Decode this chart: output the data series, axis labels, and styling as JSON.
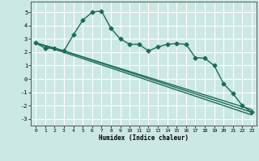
{
  "xlabel": "Humidex (Indice chaleur)",
  "background_color": "#cce8e4",
  "grid_color": "#ffffff",
  "line_color": "#1a6b5a",
  "xlim": [
    -0.5,
    23.5
  ],
  "ylim": [
    -3.5,
    5.8
  ],
  "yticks": [
    -3,
    -2,
    -1,
    0,
    1,
    2,
    3,
    4,
    5
  ],
  "xticks": [
    0,
    1,
    2,
    3,
    4,
    5,
    6,
    7,
    8,
    9,
    10,
    11,
    12,
    13,
    14,
    15,
    16,
    17,
    18,
    19,
    20,
    21,
    22,
    23
  ],
  "series1_x": [
    0,
    1,
    2,
    3,
    4,
    5,
    6,
    7,
    8,
    9,
    10,
    11,
    12,
    13,
    14,
    15,
    16,
    17,
    18,
    19,
    20,
    21,
    22,
    23
  ],
  "series1_y": [
    2.7,
    2.3,
    2.3,
    2.1,
    3.3,
    4.4,
    5.0,
    5.1,
    3.8,
    3.0,
    2.6,
    2.6,
    2.1,
    2.4,
    2.6,
    2.65,
    2.6,
    1.6,
    1.55,
    1.0,
    -0.35,
    -1.1,
    -2.0,
    -2.5
  ],
  "series2_x": [
    0,
    23
  ],
  "series2_y": [
    2.7,
    -2.7
  ],
  "series3_x": [
    0,
    3,
    23
  ],
  "series3_y": [
    2.7,
    2.1,
    -2.3
  ],
  "series4_x": [
    0,
    3,
    23
  ],
  "series4_y": [
    2.7,
    2.1,
    -2.5
  ],
  "marker": "D",
  "markersize": 2.5,
  "linewidth": 1.0
}
